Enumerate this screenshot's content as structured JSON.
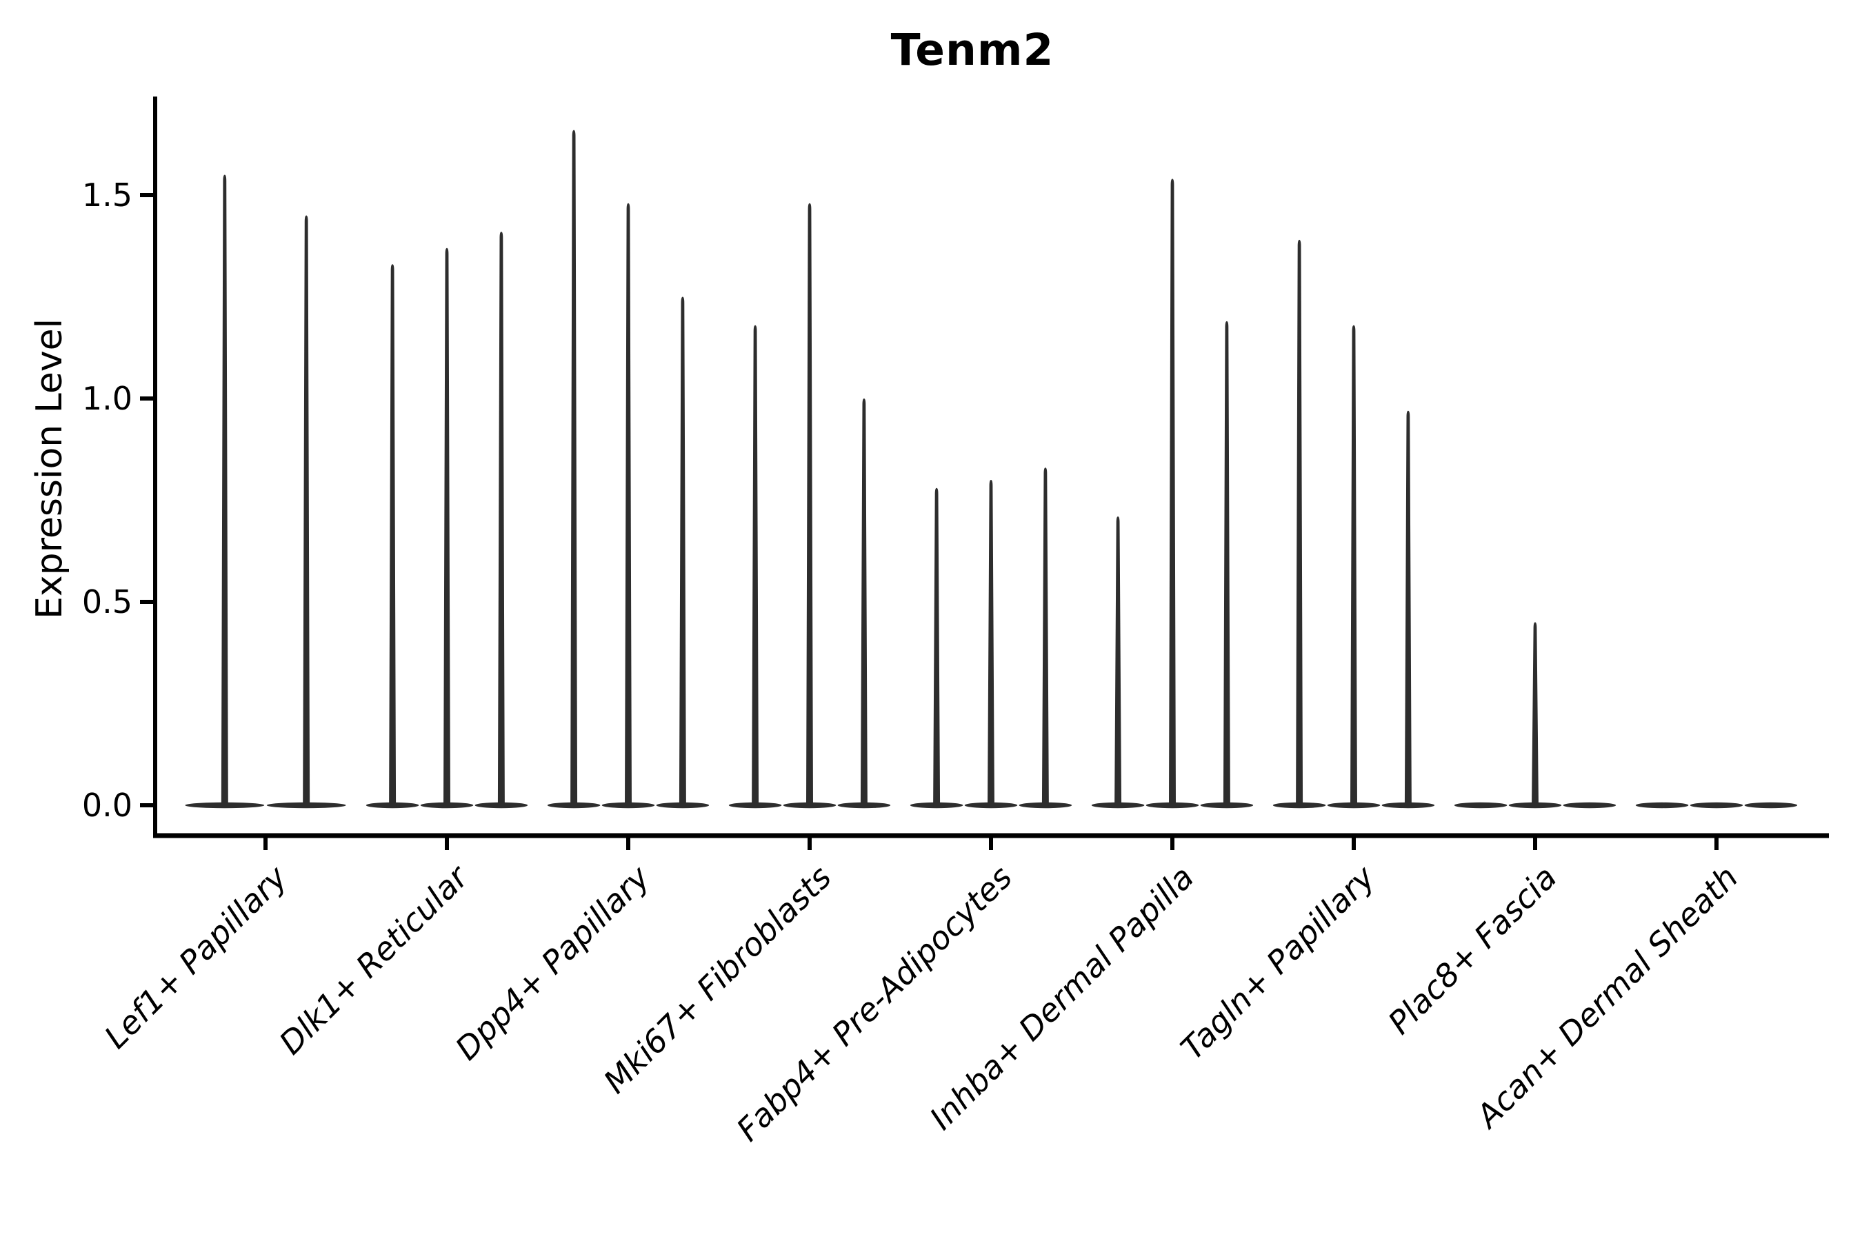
{
  "chart": {
    "title": "Tenm2",
    "ylabel": "Expression Level",
    "y_ticks": [
      "0.0",
      "0.5",
      "1.0",
      "1.5"
    ],
    "colors": {
      "violin": "#2d2d2d",
      "axis": "#000000",
      "text": "#000000",
      "background": "#ffffff"
    }
  },
  "chart_data": {
    "type": "violin",
    "title": "Tenm2",
    "xlabel": "",
    "ylabel": "Expression Level",
    "y_tick_values": [
      0,
      0.5,
      1.0,
      1.5
    ],
    "ylim": [
      -0.07,
      1.74
    ],
    "grid": false,
    "legend": "none",
    "baseline_value": 0,
    "categories": [
      "Lef1+ Papillary",
      "Dlk1+ Reticular",
      "Dpp4+ Papillary",
      "Mki67+ Fibroblasts",
      "Fabp4+ Pre-Adipocytes",
      "Inhba+ Dermal Papilla",
      "Tagln+ Papillary",
      "Plac8+ Fascia",
      "Acan+ Dermal Sheath"
    ],
    "groups": [
      {
        "category": "Lef1+ Papillary",
        "violin_peaks": [
          1.55,
          1.45
        ]
      },
      {
        "category": "Dlk1+ Reticular",
        "violin_peaks": [
          1.33,
          1.37,
          1.41
        ]
      },
      {
        "category": "Dpp4+ Papillary",
        "violin_peaks": [
          1.66,
          1.48,
          1.25
        ]
      },
      {
        "category": "Mki67+ Fibroblasts",
        "violin_peaks": [
          1.18,
          1.48,
          1.0
        ]
      },
      {
        "category": "Fabp4+ Pre-Adipocytes",
        "violin_peaks": [
          0.78,
          0.8,
          0.83
        ]
      },
      {
        "category": "Inhba+ Dermal Papilla",
        "violin_peaks": [
          0.71,
          1.54,
          1.19
        ]
      },
      {
        "category": "Tagln+ Papillary",
        "violin_peaks": [
          1.39,
          1.18,
          0.97
        ]
      },
      {
        "category": "Plac8+ Fascia",
        "violin_peaks": [
          0,
          0.45,
          0
        ]
      },
      {
        "category": "Acan+ Dermal Sheath",
        "violin_peaks": [
          0,
          0,
          0
        ]
      }
    ]
  }
}
